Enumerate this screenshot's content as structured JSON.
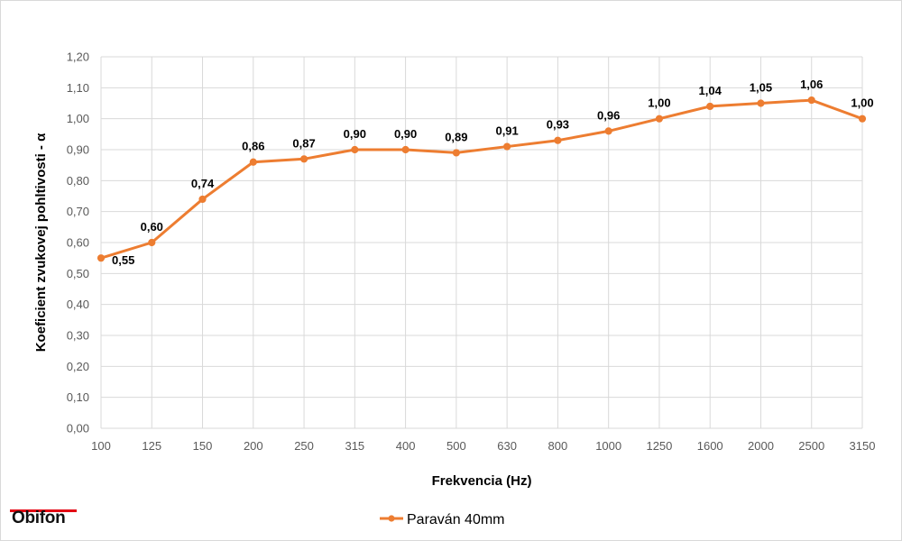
{
  "chart_data": {
    "type": "line",
    "xlabel": "Frekvencia (Hz)",
    "ylabel": "Koeficient zvukovej pohltivosti - α",
    "categories": [
      "100",
      "125",
      "150",
      "200",
      "250",
      "315",
      "400",
      "500",
      "630",
      "800",
      "1000",
      "1250",
      "1600",
      "2000",
      "2500",
      "3150"
    ],
    "series": [
      {
        "name": "Paraván 40mm",
        "values": [
          0.55,
          0.6,
          0.74,
          0.86,
          0.87,
          0.9,
          0.9,
          0.89,
          0.91,
          0.93,
          0.96,
          1.0,
          1.04,
          1.05,
          1.06,
          1.0
        ],
        "data_labels": [
          "0,55",
          "0,60",
          "0,74",
          "0,86",
          "0,87",
          "0,90",
          "0,90",
          "0,89",
          "0,91",
          "0,93",
          "0,96",
          "1,00",
          "1,04",
          "1,05",
          "1,06",
          "1,00"
        ]
      }
    ],
    "ylim": [
      0,
      1.2
    ],
    "yticks": [
      "0,00",
      "0,10",
      "0,20",
      "0,30",
      "0,40",
      "0,50",
      "0,60",
      "0,70",
      "0,80",
      "0,90",
      "1,00",
      "1,10",
      "1,20"
    ],
    "grid": true,
    "legend_position": "bottom",
    "colors": {
      "series": "#ed7d31",
      "grid": "#d9d9d9"
    }
  },
  "branding": {
    "logo_text": "Obifon",
    "logo_accent": "#e30613"
  }
}
